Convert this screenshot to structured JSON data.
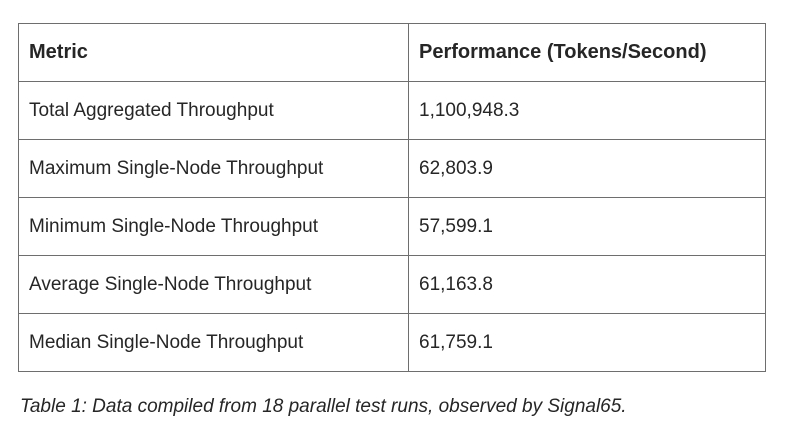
{
  "table": {
    "columns": {
      "metric": "Metric",
      "value": "Performance (Tokens/Second)"
    },
    "rows": [
      {
        "metric": "Total Aggregated Throughput",
        "value": "1,100,948.3"
      },
      {
        "metric": "Maximum Single-Node Throughput",
        "value": "62,803.9"
      },
      {
        "metric": "Minimum Single-Node Throughput",
        "value": "57,599.1"
      },
      {
        "metric": "Average Single-Node Throughput",
        "value": "61,163.8"
      },
      {
        "metric": "Median Single-Node Throughput",
        "value": "61,759.1"
      }
    ]
  },
  "caption": "Table 1: Data compiled from 18 parallel test runs, observed by Signal65.",
  "colors": {
    "border": "#6e6e6e",
    "text": "#262626",
    "background": "#ffffff"
  }
}
